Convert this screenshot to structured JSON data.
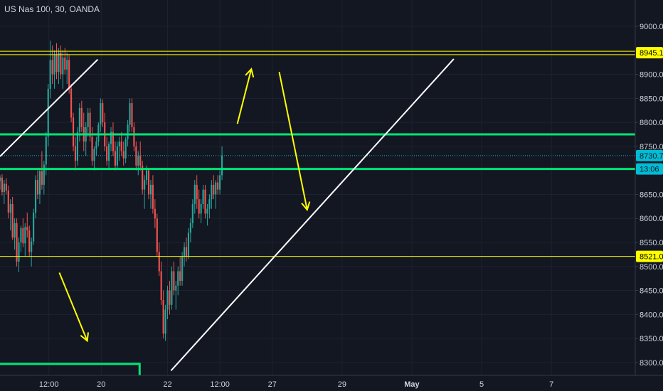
{
  "chart_title": "US Nas 100, 30, OANDA",
  "chart_data": {
    "type": "candlestick",
    "title": "US Nas 100, 30, OANDA",
    "symbol": "US Nas 100",
    "interval": "30",
    "source": "OANDA",
    "ylim": [
      8285,
      9040
    ],
    "y_ticks": [
      9000.0,
      8950.0,
      8900.0,
      8850.0,
      8800.0,
      8750.0,
      8650.0,
      8600.0,
      8550.0,
      8500.0,
      8450.0,
      8400.0,
      8350.0,
      8300.0
    ],
    "y_tick_labels": [
      "9000.0",
      "8950.0",
      "8900.0",
      "8850.0",
      "8800.0",
      "8750.0",
      "8650.0",
      "8600.0",
      "8550.0",
      "8500.0",
      "8450.0",
      "8400.0",
      "8350.0",
      "8300.0"
    ],
    "x_ticks": [
      {
        "label": "12:00",
        "x": 3.5
      },
      {
        "label": "20",
        "x": 4.25
      },
      {
        "label": "22",
        "x": 5.2
      },
      {
        "label": "12:00",
        "x": 5.95
      },
      {
        "label": "27",
        "x": 6.7
      },
      {
        "label": "29",
        "x": 7.7
      },
      {
        "label": "May",
        "x": 8.7,
        "bold": true
      },
      {
        "label": "5",
        "x": 9.7
      },
      {
        "label": "7",
        "x": 10.7
      }
    ],
    "x_range": [
      2.8,
      11.9
    ],
    "price_tags": [
      {
        "label": "8945.1",
        "value": 8945.1,
        "bg": "#ffff00",
        "fg": "#000000"
      },
      {
        "label": "8730.7",
        "value": 8730.7,
        "bg": "#00bcd4",
        "fg": "#131722"
      },
      {
        "label": "13:06",
        "value": 8703,
        "bg": "#00bcd4",
        "fg": "#131722"
      },
      {
        "label": "8521.0",
        "value": 8521.0,
        "bg": "#ffff00",
        "fg": "#000000"
      }
    ],
    "last_price": 8730.7,
    "horizontal_lines": [
      {
        "value": 8948,
        "color": "#ffff00",
        "width": 1
      },
      {
        "value": 8941,
        "color": "#ffff00",
        "width": 1
      },
      {
        "value": 8521,
        "color": "#ffff00",
        "width": 1
      },
      {
        "value": 8775,
        "color": "#00e676",
        "width": 3
      },
      {
        "value": 8703,
        "color": "#00e676",
        "width": 3
      }
    ],
    "bottom_zone": {
      "x": [
        2.8,
        4.8
      ],
      "value": 8297,
      "color": "#00e676"
    },
    "trend_lines": [
      {
        "from": [
          2.8,
          8729
        ],
        "to": [
          4.2,
          8931
        ],
        "color": "#ffffff"
      },
      {
        "from": [
          5.25,
          8283
        ],
        "to": [
          9.3,
          8932
        ],
        "color": "#ffffff"
      }
    ],
    "arrows": [
      {
        "from": [
          6.2,
          8797
        ],
        "to": [
          6.4,
          8911
        ],
        "color": "#ffff00"
      },
      {
        "from": [
          6.8,
          8905
        ],
        "to": [
          7.2,
          8618
        ],
        "color": "#ffff00"
      },
      {
        "from": [
          3.65,
          8487
        ],
        "to": [
          4.05,
          8345
        ],
        "color": "#ffff00"
      }
    ],
    "candles": [
      [
        2.8,
        8678,
        8690,
        8660,
        8685
      ],
      [
        2.83,
        8685,
        8692,
        8648,
        8655
      ],
      [
        2.86,
        8655,
        8680,
        8630,
        8672
      ],
      [
        2.89,
        8672,
        8684,
        8650,
        8658
      ],
      [
        2.92,
        8658,
        8668,
        8600,
        8612
      ],
      [
        2.95,
        8612,
        8640,
        8575,
        8630
      ],
      [
        2.98,
        8630,
        8645,
        8555,
        8560
      ],
      [
        3.01,
        8560,
        8600,
        8535,
        8590
      ],
      [
        3.04,
        8590,
        8600,
        8500,
        8510
      ],
      [
        3.07,
        8510,
        8560,
        8488,
        8550
      ],
      [
        3.1,
        8550,
        8585,
        8530,
        8580
      ],
      [
        3.13,
        8580,
        8600,
        8540,
        8548
      ],
      [
        3.16,
        8548,
        8590,
        8520,
        8582
      ],
      [
        3.19,
        8582,
        8612,
        8560,
        8575
      ],
      [
        3.22,
        8575,
        8585,
        8520,
        8530
      ],
      [
        3.25,
        8530,
        8560,
        8500,
        8552
      ],
      [
        3.28,
        8552,
        8620,
        8545,
        8612
      ],
      [
        3.31,
        8612,
        8690,
        8600,
        8680
      ],
      [
        3.34,
        8680,
        8700,
        8640,
        8650
      ],
      [
        3.37,
        8650,
        8705,
        8630,
        8698
      ],
      [
        3.4,
        8698,
        8740,
        8660,
        8670
      ],
      [
        3.43,
        8670,
        8720,
        8650,
        8712
      ],
      [
        3.46,
        8712,
        8780,
        8690,
        8770
      ],
      [
        3.49,
        8770,
        8880,
        8750,
        8870
      ],
      [
        3.52,
        8870,
        8970,
        8850,
        8930
      ],
      [
        3.55,
        8930,
        8960,
        8880,
        8900
      ],
      [
        3.58,
        8900,
        8950,
        8870,
        8940
      ],
      [
        3.61,
        8940,
        8965,
        8890,
        8905
      ],
      [
        3.64,
        8905,
        8955,
        8880,
        8945
      ],
      [
        3.67,
        8945,
        8960,
        8890,
        8900
      ],
      [
        3.7,
        8900,
        8950,
        8870,
        8935
      ],
      [
        3.73,
        8935,
        8955,
        8900,
        8910
      ],
      [
        3.76,
        8910,
        8945,
        8880,
        8930
      ],
      [
        3.79,
        8930,
        8940,
        8860,
        8870
      ],
      [
        3.82,
        8870,
        8880,
        8800,
        8810
      ],
      [
        3.85,
        8810,
        8820,
        8740,
        8750
      ],
      [
        3.88,
        8750,
        8770,
        8700,
        8720
      ],
      [
        3.91,
        8720,
        8790,
        8710,
        8780
      ],
      [
        3.94,
        8780,
        8840,
        8760,
        8830
      ],
      [
        3.97,
        8830,
        8845,
        8780,
        8790
      ],
      [
        4.0,
        8790,
        8820,
        8740,
        8760
      ],
      [
        4.03,
        8760,
        8800,
        8730,
        8790
      ],
      [
        4.06,
        8790,
        8830,
        8770,
        8820
      ],
      [
        4.09,
        8820,
        8830,
        8760,
        8770
      ],
      [
        4.12,
        8770,
        8790,
        8710,
        8720
      ],
      [
        4.15,
        8720,
        8750,
        8700,
        8745
      ],
      [
        4.18,
        8745,
        8770,
        8730,
        8760
      ],
      [
        4.21,
        8760,
        8800,
        8750,
        8795
      ],
      [
        4.24,
        8795,
        8850,
        8780,
        8840
      ],
      [
        4.27,
        8840,
        8848,
        8790,
        8800
      ],
      [
        4.3,
        8800,
        8820,
        8740,
        8750
      ],
      [
        4.33,
        8750,
        8770,
        8710,
        8720
      ],
      [
        4.36,
        8720,
        8760,
        8705,
        8755
      ],
      [
        4.39,
        8755,
        8790,
        8740,
        8780
      ],
      [
        4.42,
        8780,
        8800,
        8730,
        8740
      ],
      [
        4.45,
        8740,
        8760,
        8700,
        8710
      ],
      [
        4.48,
        8710,
        8760,
        8705,
        8750
      ],
      [
        4.51,
        8750,
        8770,
        8720,
        8760
      ],
      [
        4.54,
        8760,
        8780,
        8730,
        8740
      ],
      [
        4.57,
        8740,
        8760,
        8710,
        8725
      ],
      [
        4.6,
        8725,
        8770,
        8715,
        8765
      ],
      [
        4.63,
        8765,
        8805,
        8750,
        8795
      ],
      [
        4.66,
        8795,
        8850,
        8780,
        8840
      ],
      [
        4.69,
        8840,
        8850,
        8780,
        8790
      ],
      [
        4.72,
        8790,
        8800,
        8740,
        8750
      ],
      [
        4.75,
        8750,
        8760,
        8700,
        8710
      ],
      [
        4.78,
        8710,
        8740,
        8690,
        8730
      ],
      [
        4.81,
        8730,
        8760,
        8700,
        8710
      ],
      [
        4.84,
        8710,
        8720,
        8650,
        8660
      ],
      [
        4.87,
        8660,
        8690,
        8620,
        8680
      ],
      [
        4.9,
        8680,
        8710,
        8670,
        8700
      ],
      [
        4.93,
        8700,
        8705,
        8640,
        8650
      ],
      [
        4.96,
        8650,
        8680,
        8620,
        8670
      ],
      [
        4.99,
        8670,
        8690,
        8610,
        8620
      ],
      [
        5.02,
        8620,
        8640,
        8580,
        8600
      ],
      [
        5.05,
        8600,
        8610,
        8520,
        8530
      ],
      [
        5.08,
        8530,
        8550,
        8480,
        8490
      ],
      [
        5.11,
        8490,
        8510,
        8420,
        8430
      ],
      [
        5.14,
        8430,
        8450,
        8350,
        8360
      ],
      [
        5.17,
        8360,
        8420,
        8345,
        8410
      ],
      [
        5.2,
        8410,
        8460,
        8390,
        8450
      ],
      [
        5.23,
        8450,
        8470,
        8400,
        8420
      ],
      [
        5.26,
        8420,
        8500,
        8410,
        8490
      ],
      [
        5.29,
        8490,
        8510,
        8440,
        8450
      ],
      [
        5.32,
        8450,
        8470,
        8410,
        8460
      ],
      [
        5.35,
        8460,
        8500,
        8440,
        8490
      ],
      [
        5.38,
        8490,
        8520,
        8460,
        8470
      ],
      [
        5.41,
        8470,
        8530,
        8460,
        8520
      ],
      [
        5.44,
        8520,
        8550,
        8500,
        8540
      ],
      [
        5.47,
        8540,
        8560,
        8510,
        8520
      ],
      [
        5.5,
        8520,
        8580,
        8515,
        8570
      ],
      [
        5.53,
        8570,
        8600,
        8550,
        8590
      ],
      [
        5.56,
        8590,
        8640,
        8580,
        8630
      ],
      [
        5.59,
        8630,
        8680,
        8610,
        8670
      ],
      [
        5.62,
        8670,
        8690,
        8620,
        8640
      ],
      [
        5.65,
        8640,
        8660,
        8600,
        8610
      ],
      [
        5.68,
        8610,
        8640,
        8590,
        8630
      ],
      [
        5.71,
        8630,
        8670,
        8620,
        8660
      ],
      [
        5.74,
        8660,
        8670,
        8600,
        8610
      ],
      [
        5.77,
        8610,
        8630,
        8585,
        8620
      ],
      [
        5.8,
        8620,
        8650,
        8600,
        8640
      ],
      [
        5.83,
        8640,
        8680,
        8620,
        8670
      ],
      [
        5.86,
        8670,
        8690,
        8640,
        8650
      ],
      [
        5.89,
        8650,
        8680,
        8620,
        8675
      ],
      [
        5.92,
        8675,
        8690,
        8650,
        8660
      ],
      [
        5.95,
        8660,
        8700,
        8650,
        8690
      ],
      [
        5.98,
        8690,
        8750,
        8680,
        8731
      ]
    ]
  }
}
